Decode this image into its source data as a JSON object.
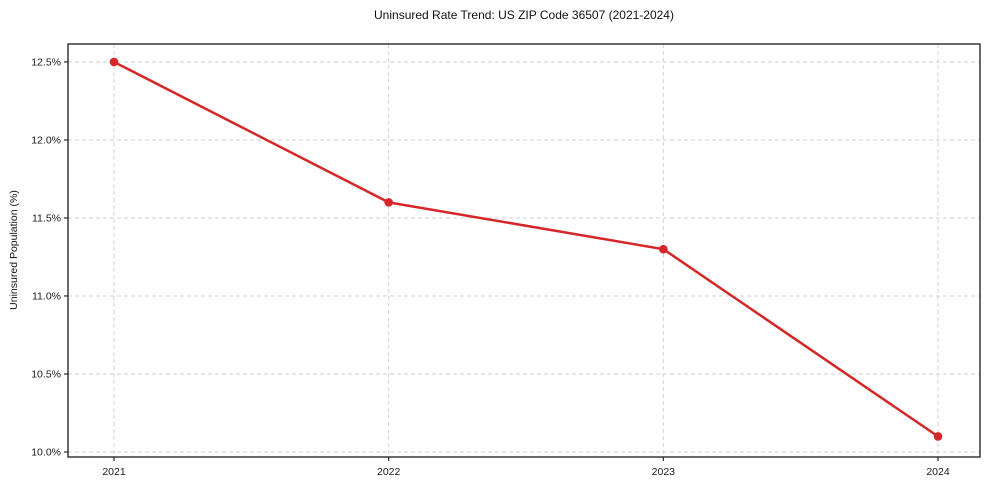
{
  "chart_data": {
    "type": "line",
    "title": "Uninsured Rate Trend: US ZIP Code 36507 (2021-2024)",
    "xlabel": "",
    "ylabel": "Uninsured Population (%)",
    "categories": [
      "2021",
      "2022",
      "2023",
      "2024"
    ],
    "series": [
      {
        "name": "Uninsured Rate",
        "values": [
          12.5,
          11.6,
          11.3,
          10.1
        ]
      }
    ],
    "ylim": [
      9.968,
      12.615
    ],
    "yticks": [
      10.0,
      10.5,
      11.0,
      11.5,
      12.0,
      12.5
    ],
    "ytick_suffix": "%",
    "grid": true,
    "legend": "none",
    "line_color": "#d62728",
    "marker": "circle"
  }
}
